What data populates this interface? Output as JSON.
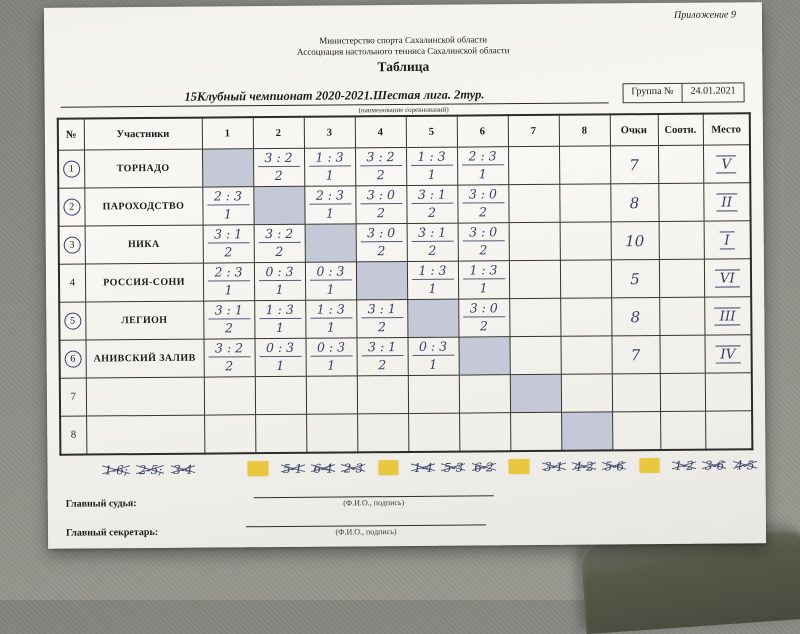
{
  "header": {
    "annex": "Приложение 9",
    "org_line1": "Министерство спорта Сахалинской области",
    "org_line2": "Ассоциация настольного тенниса Сахалинской области",
    "doc_title": "Таблица",
    "tournament_title": "15Клубный чемпионат 2020-2021.Шестая лига. 2тур.",
    "tournament_caption": "(наименование соревнований)",
    "group_label": "Группа №",
    "date": "24.01.2021"
  },
  "table": {
    "col_headers": {
      "num": "№",
      "participants": "Участники",
      "rounds": [
        "1",
        "2",
        "3",
        "4",
        "5",
        "6",
        "7",
        "8"
      ],
      "points": "Очки",
      "ratio": "Соотн.",
      "place": "Место"
    },
    "rows": [
      {
        "num": "1",
        "circled": true,
        "name": "ТОРНАДО",
        "diag": 0,
        "games": [
          null,
          {
            "score": "3 : 2",
            "pts": "2"
          },
          {
            "score": "1 : 3",
            "pts": "1"
          },
          {
            "score": "3 : 2",
            "pts": "2"
          },
          {
            "score": "1 : 3",
            "pts": "1"
          },
          {
            "score": "2 : 3",
            "pts": "1"
          },
          null,
          null
        ],
        "points": "7",
        "ratio": "",
        "place": "V"
      },
      {
        "num": "2",
        "circled": true,
        "name": "ПАРОХОДСТВО",
        "diag": 1,
        "games": [
          {
            "score": "2 : 3",
            "pts": "1"
          },
          null,
          {
            "score": "2 : 3",
            "pts": "1"
          },
          {
            "score": "3 : 0",
            "pts": "2"
          },
          {
            "score": "3 : 1",
            "pts": "2"
          },
          {
            "score": "3 : 0",
            "pts": "2"
          },
          null,
          null
        ],
        "points": "8",
        "ratio": "",
        "place": "II"
      },
      {
        "num": "3",
        "circled": true,
        "name": "НИКА",
        "diag": 2,
        "games": [
          {
            "score": "3 : 1",
            "pts": "2"
          },
          {
            "score": "3 : 2",
            "pts": "2"
          },
          null,
          {
            "score": "3 : 0",
            "pts": "2"
          },
          {
            "score": "3 : 1",
            "pts": "2"
          },
          {
            "score": "3 : 0",
            "pts": "2"
          },
          null,
          null
        ],
        "points": "10",
        "ratio": "",
        "place": "I"
      },
      {
        "num": "4",
        "circled": false,
        "name": "РОССИЯ-СОНИ",
        "diag": 3,
        "games": [
          {
            "score": "2 : 3",
            "pts": "1"
          },
          {
            "score": "0 : 3",
            "pts": "1"
          },
          {
            "score": "0 : 3",
            "pts": "1"
          },
          null,
          {
            "score": "1 : 3",
            "pts": "1"
          },
          {
            "score": "1 : 3",
            "pts": "1"
          },
          null,
          null
        ],
        "points": "5",
        "ratio": "",
        "place": "VI"
      },
      {
        "num": "5",
        "circled": true,
        "name": "ЛЕГИОН",
        "diag": 4,
        "games": [
          {
            "score": "3 : 1",
            "pts": "2"
          },
          {
            "score": "1 : 3",
            "pts": "1"
          },
          {
            "score": "1 : 3",
            "pts": "1"
          },
          {
            "score": "3 : 1",
            "pts": "2"
          },
          null,
          {
            "score": "3 : 0",
            "pts": "2"
          },
          null,
          null
        ],
        "points": "8",
        "ratio": "",
        "place": "III"
      },
      {
        "num": "6",
        "circled": true,
        "name": "АНИВСКИЙ ЗАЛИВ",
        "diag": 5,
        "games": [
          {
            "score": "3 : 2",
            "pts": "2"
          },
          {
            "score": "0 : 3",
            "pts": "1"
          },
          {
            "score": "0 : 3",
            "pts": "1"
          },
          {
            "score": "3 : 1",
            "pts": "2"
          },
          {
            "score": "0 : 3",
            "pts": "1"
          },
          null,
          null,
          null
        ],
        "points": "7",
        "ratio": "",
        "place": "IV"
      },
      {
        "num": "7",
        "circled": false,
        "name": "",
        "diag": 6,
        "games": [
          null,
          null,
          null,
          null,
          null,
          null,
          null,
          null
        ],
        "points": "",
        "ratio": "",
        "place": ""
      },
      {
        "num": "8",
        "circled": false,
        "name": "",
        "diag": 7,
        "games": [
          null,
          null,
          null,
          null,
          null,
          null,
          null,
          null
        ],
        "points": "",
        "ratio": "",
        "place": ""
      }
    ]
  },
  "schedule": {
    "segments": [
      {
        "type": "pairs",
        "items": [
          "1-6;",
          "2-5;",
          "3-4"
        ]
      },
      {
        "type": "highlight"
      },
      {
        "type": "pairs",
        "items": [
          "5-1",
          "6-4",
          "2-3"
        ]
      },
      {
        "type": "highlight"
      },
      {
        "type": "pairs",
        "items": [
          "1-4",
          "5-3",
          "6-2"
        ]
      },
      {
        "type": "highlight"
      },
      {
        "type": "pairs",
        "items": [
          "3-1",
          "4-2",
          "5-6"
        ]
      },
      {
        "type": "highlight"
      },
      {
        "type": "pairs",
        "items": [
          "1-2",
          "3-6",
          "4-5"
        ]
      }
    ]
  },
  "footer": {
    "judge_label": "Главный судья:",
    "secretary_label": "Главный секретарь:",
    "sign_caption": "(Ф.И.О., подпись)"
  },
  "colors": {
    "ink": "#3a4068",
    "highlight": "#eac83e",
    "diag_fill": "#c4c8d7",
    "paper": "#f5f4f0",
    "carpet": "#8f8f89"
  }
}
